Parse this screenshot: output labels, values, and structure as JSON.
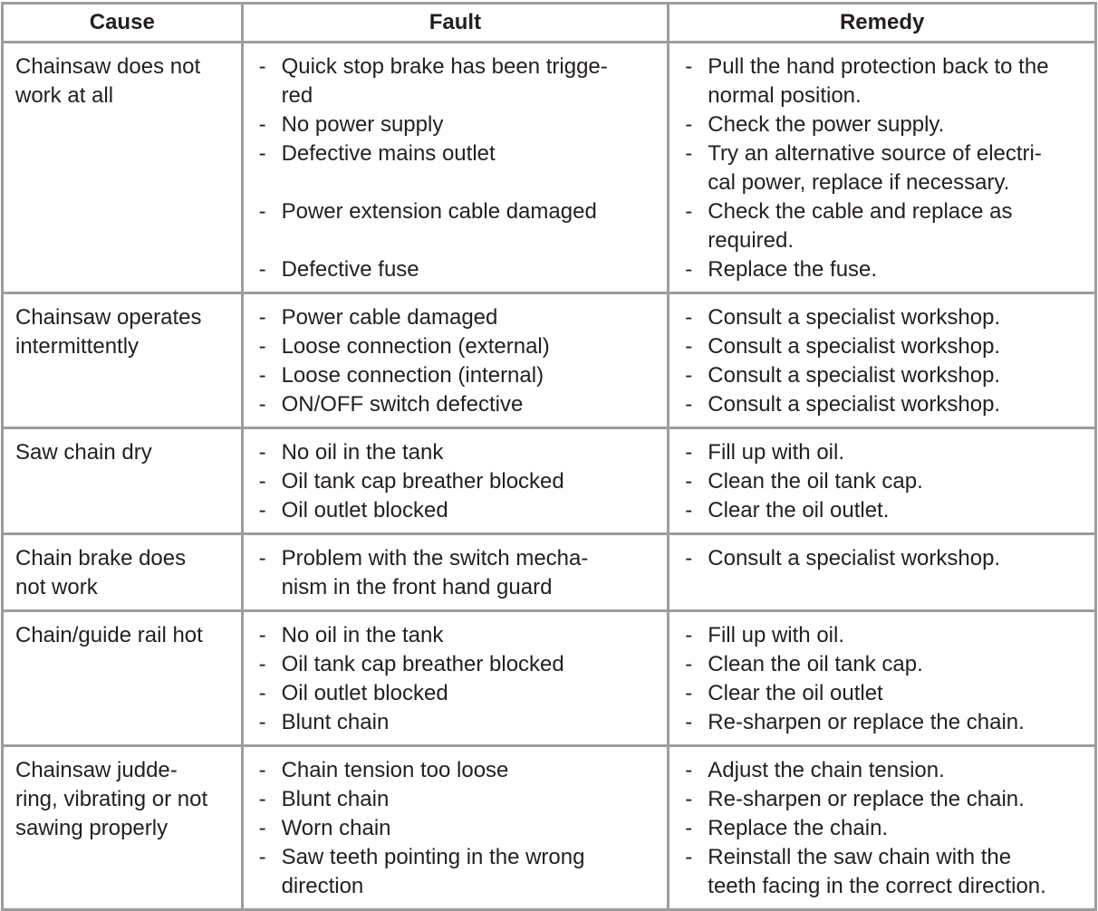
{
  "headers": {
    "cause": "Cause",
    "fault": "Fault",
    "remedy": "Remedy"
  },
  "dash": "-",
  "rows": [
    {
      "cause": "Chainsaw does not\nwork at all",
      "faults": [
        "Quick stop brake has been trigge-\nred",
        "No power supply",
        "Defective mains outlet",
        "Power extension cable damaged",
        "Defective fuse"
      ],
      "remedies": [
        "Pull the hand protection back to the\nnormal position.",
        "Check the power supply.",
        "Try an alternative source of electri-\ncal power, replace if necessary.",
        "Check the cable and replace as\nrequired.",
        "Replace the fuse."
      ]
    },
    {
      "cause": "Chainsaw operates\nintermittently",
      "faults": [
        "Power cable damaged",
        "Loose connection (external)",
        "Loose connection (internal)",
        "ON/OFF switch defective"
      ],
      "remedies": [
        "Consult a specialist workshop.",
        "Consult a specialist workshop.",
        "Consult a specialist workshop.",
        "Consult a specialist workshop."
      ]
    },
    {
      "cause": "Saw chain dry",
      "faults": [
        "No oil in the tank",
        "Oil tank cap breather blocked",
        "Oil outlet blocked"
      ],
      "remedies": [
        "Fill up with oil.",
        "Clean the oil tank cap.",
        "Clear the oil outlet."
      ]
    },
    {
      "cause": "Chain brake does\nnot work",
      "faults": [
        "Problem with the switch mecha-\nnism in the front hand guard"
      ],
      "remedies": [
        "Consult a specialist workshop."
      ]
    },
    {
      "cause": "Chain/guide rail hot",
      "faults": [
        "No oil in the tank",
        "Oil tank cap breather blocked",
        "Oil outlet blocked",
        "Blunt chain"
      ],
      "remedies": [
        "Fill up with oil.",
        "Clean the oil tank cap.",
        "Clear the oil outlet",
        "Re-sharpen or replace the chain."
      ]
    },
    {
      "cause": "Chainsaw judde-\nring, vibrating or not\nsawing properly",
      "faults": [
        "Chain tension too loose",
        "Blunt chain",
        "Worn chain",
        "Saw teeth pointing in the wrong\ndirection"
      ],
      "remedies": [
        "Adjust the chain tension.",
        "Re-sharpen or replace the chain.",
        "Replace the chain.",
        "Reinstall the saw chain with the\nteeth facing in the correct direction."
      ]
    }
  ]
}
